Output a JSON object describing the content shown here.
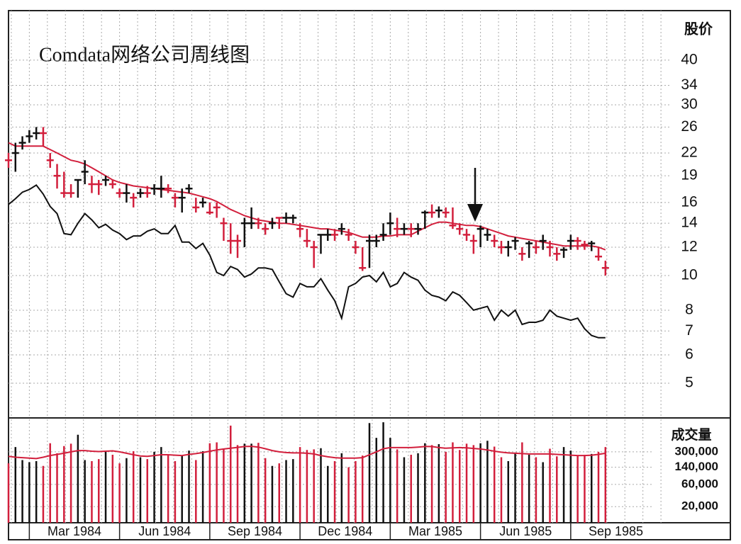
{
  "chart_data": {
    "type": "stock",
    "title": "Comdata网络公司周线图",
    "y_label": "股价",
    "volume_label": "成交量",
    "x": [
      0,
      1,
      2,
      3,
      4,
      5,
      6,
      7,
      8,
      9,
      10,
      11,
      12,
      13,
      14,
      15,
      16,
      17,
      18,
      19,
      20,
      21,
      22,
      23,
      24,
      25,
      26,
      27,
      28,
      29,
      30,
      31,
      32,
      33,
      34,
      35,
      36,
      37,
      38,
      39,
      40,
      41,
      42,
      43,
      44,
      45,
      46,
      47,
      48,
      49,
      50,
      51,
      52,
      53,
      54,
      55,
      56,
      57,
      58,
      59,
      60,
      61,
      62,
      63,
      64,
      65,
      66,
      67,
      68,
      69,
      70,
      71,
      72,
      73,
      74,
      75,
      76,
      77,
      78,
      79,
      80,
      81,
      82,
      83,
      84,
      85,
      86
    ],
    "xlim": [
      0,
      104
    ],
    "xticks": [
      {
        "value": 3,
        "label": "Mar 1984"
      },
      {
        "value": 16,
        "label": "Jun 1984"
      },
      {
        "value": 29,
        "label": "Sep 1984"
      },
      {
        "value": 42,
        "label": "Dec 1984"
      },
      {
        "value": 55,
        "label": "Mar 1985"
      },
      {
        "value": 68,
        "label": "Jun 1985"
      },
      {
        "value": 81,
        "label": "Sep 1985"
      }
    ],
    "ylim": [
      4,
      55
    ],
    "yticks": [
      40,
      34,
      30,
      26,
      22,
      19,
      16,
      14,
      12,
      10,
      8,
      7,
      6,
      5
    ],
    "log_scale": true,
    "grid": true,
    "high": [
      22,
      23.5,
      24.5,
      25.5,
      26,
      26,
      22,
      20.5,
      19.5,
      18,
      18.5,
      21,
      19,
      18.5,
      19,
      18.5,
      17.5,
      18,
      17,
      17.5,
      17.8,
      18,
      19,
      18,
      17,
      17.5,
      18,
      16.5,
      16.5,
      16,
      16,
      14.5,
      14,
      13,
      14.5,
      15.5,
      14.5,
      14,
      14.5,
      14.5,
      15,
      14.8,
      14,
      13.5,
      12.5,
      13,
      13.5,
      13.5,
      14,
      13.5,
      12.5,
      12,
      13,
      13,
      14,
      15,
      14.5,
      14,
      14,
      14,
      15.2,
      15.8,
      15.6,
      15.5,
      15.5,
      14,
      13.5,
      13,
      13.8,
      13.5,
      13,
      12.5,
      12.5,
      12.8,
      12,
      12.5,
      12.5,
      13,
      12.5,
      12,
      12,
      13,
      12.8,
      12.5,
      12.5,
      12,
      11
    ],
    "low": [
      20,
      19.5,
      22.5,
      23.5,
      24,
      23,
      20,
      17.5,
      16.5,
      16.5,
      16.5,
      18,
      17,
      16.8,
      17.8,
      17.5,
      16.5,
      16,
      15.5,
      16.5,
      16.5,
      16.8,
      16.5,
      17,
      15.5,
      15,
      17,
      15,
      15.5,
      14.8,
      14.5,
      12.5,
      11.5,
      11.2,
      12,
      13.5,
      13.5,
      13,
      13.5,
      13.5,
      14,
      14,
      12.8,
      12,
      10.5,
      11.5,
      12.5,
      12.5,
      13,
      12.5,
      11.5,
      10.3,
      10.5,
      12,
      12.5,
      13,
      12.8,
      13,
      12.8,
      13,
      13.5,
      14.5,
      14.5,
      14.5,
      13.5,
      13,
      12.5,
      11.5,
      12,
      12.5,
      12,
      11.5,
      11.3,
      11.8,
      11,
      11.2,
      11.5,
      11.8,
      11.3,
      11,
      11.2,
      11.8,
      11.8,
      11.8,
      11.7,
      11,
      10
    ],
    "close": [
      21,
      22,
      23.5,
      24.5,
      25,
      25,
      21,
      19,
      17,
      17,
      18.5,
      19.5,
      18,
      18,
      18.5,
      18,
      17,
      17,
      16.5,
      17,
      17,
      17.5,
      17.5,
      17.5,
      16.5,
      16.5,
      17.5,
      15.5,
      16,
      15,
      15.5,
      14,
      12.5,
      12.5,
      14,
      14,
      14,
      13.5,
      14,
      14.5,
      14.5,
      14.5,
      13.5,
      12.5,
      12,
      13,
      13,
      13,
      13.5,
      13,
      12,
      10.5,
      12.5,
      12.5,
      13,
      14,
      13.5,
      13.5,
      13.5,
      13.5,
      15,
      15,
      15.2,
      15,
      13.8,
      13.5,
      13,
      12.5,
      13.5,
      13,
      12.5,
      12,
      12,
      12.5,
      11.5,
      12.3,
      12,
      12.5,
      12,
      11.5,
      11.8,
      12.5,
      12.5,
      12.2,
      12.3,
      11.3,
      10.5
    ],
    "colors": [
      "#d21f3c",
      "#111111",
      "#111111",
      "#111111",
      "#111111",
      "#d21f3c",
      "#d21f3c",
      "#d21f3c",
      "#d21f3c",
      "#d21f3c",
      "#111111",
      "#111111",
      "#d21f3c",
      "#d21f3c",
      "#111111",
      "#d21f3c",
      "#d21f3c",
      "#111111",
      "#d21f3c",
      "#111111",
      "#d21f3c",
      "#111111",
      "#111111",
      "#d21f3c",
      "#d21f3c",
      "#111111",
      "#111111",
      "#d21f3c",
      "#111111",
      "#d21f3c",
      "#d21f3c",
      "#d21f3c",
      "#d21f3c",
      "#d21f3c",
      "#111111",
      "#111111",
      "#d21f3c",
      "#d21f3c",
      "#111111",
      "#d21f3c",
      "#111111",
      "#111111",
      "#d21f3c",
      "#d21f3c",
      "#d21f3c",
      "#111111",
      "#111111",
      "#d21f3c",
      "#111111",
      "#d21f3c",
      "#d21f3c",
      "#d21f3c",
      "#111111",
      "#111111",
      "#111111",
      "#111111",
      "#d21f3c",
      "#111111",
      "#d21f3c",
      "#111111",
      "#111111",
      "#d21f3c",
      "#111111",
      "#d21f3c",
      "#d21f3c",
      "#d21f3c",
      "#d21f3c",
      "#d21f3c",
      "#111111",
      "#111111",
      "#d21f3c",
      "#d21f3c",
      "#111111",
      "#111111",
      "#d21f3c",
      "#111111",
      "#d21f3c",
      "#111111",
      "#d21f3c",
      "#d21f3c",
      "#111111",
      "#111111",
      "#d21f3c",
      "#d21f3c",
      "#111111",
      "#d21f3c",
      "#d21f3c"
    ],
    "moving_average": {
      "color": "#d21f3c",
      "values": [
        23.5,
        23,
        23,
        23,
        23,
        23,
        22.5,
        22,
        21.5,
        21,
        20.8,
        20.5,
        20,
        19.5,
        19,
        18.5,
        18.2,
        18,
        17.8,
        17.7,
        17.6,
        17.5,
        17.4,
        17.3,
        17.2,
        17.1,
        17,
        16.8,
        16.6,
        16.4,
        16.1,
        15.7,
        15.3,
        15,
        14.7,
        14.5,
        14.3,
        14.2,
        14.1,
        14,
        14,
        13.9,
        13.8,
        13.7,
        13.6,
        13.5,
        13.5,
        13.4,
        13.3,
        13.2,
        13,
        12.8,
        12.8,
        12.8,
        12.9,
        12.9,
        13,
        13,
        13,
        13.3,
        13.6,
        13.9,
        14.1,
        14.1,
        14,
        13.9,
        13.8,
        13.8,
        13.7,
        13.5,
        13.3,
        13.1,
        12.9,
        12.8,
        12.7,
        12.6,
        12.5,
        12.4,
        12.3,
        12.2,
        12.1,
        12.1,
        12.1,
        12.1,
        12.1,
        12,
        11.8
      ]
    },
    "relative_strength": {
      "color": "#111111",
      "values": [
        15.8,
        16.4,
        17.1,
        17.4,
        17.9,
        16.9,
        15.6,
        14.9,
        13.1,
        13,
        14,
        14.9,
        14.3,
        13.6,
        13.9,
        13.4,
        13.1,
        12.6,
        12.9,
        12.9,
        13.3,
        13.5,
        13.1,
        13.1,
        13.8,
        12.4,
        12.4,
        11.9,
        12.3,
        11.4,
        10.2,
        10,
        10.6,
        10.4,
        9.9,
        10.1,
        10.5,
        10.5,
        10.4,
        9.6,
        8.9,
        8.7,
        9.5,
        9.3,
        9.3,
        9.8,
        9.1,
        8.5,
        7.6,
        9.3,
        9.5,
        9.9,
        10,
        9.6,
        10.2,
        9.3,
        9.5,
        10.2,
        9.9,
        9.7,
        9.1,
        8.8,
        8.7,
        8.5,
        9,
        8.8,
        8.4,
        8,
        8.1,
        8.2,
        7.5,
        8,
        7.7,
        8,
        7.3,
        7.4,
        7.4,
        7.5,
        8,
        7.7,
        7.6,
        7.5,
        7.6,
        7.1,
        6.8,
        6.7,
        6.7
      ]
    },
    "volume": {
      "ylim": [
        9000,
        1500000
      ],
      "yticks": [
        {
          "value": 300000,
          "label": "300,000"
        },
        {
          "value": 140000,
          "label": "140,000"
        },
        {
          "value": 60000,
          "label": "60,000"
        },
        {
          "value": 20000,
          "label": "20,000"
        }
      ],
      "values": [
        170000,
        380000,
        200000,
        180000,
        190000,
        150000,
        460000,
        280000,
        400000,
        450000,
        700000,
        200000,
        190000,
        210000,
        300000,
        260000,
        170000,
        220000,
        310000,
        230000,
        210000,
        300000,
        380000,
        260000,
        190000,
        250000,
        320000,
        200000,
        310000,
        460000,
        480000,
        350000,
        1100000,
        420000,
        450000,
        450000,
        470000,
        220000,
        150000,
        170000,
        200000,
        210000,
        380000,
        330000,
        340000,
        360000,
        150000,
        190000,
        280000,
        140000,
        190000,
        250000,
        1250000,
        600000,
        1300000,
        600000,
        340000,
        230000,
        260000,
        280000,
        460000,
        420000,
        440000,
        300000,
        480000,
        330000,
        450000,
        420000,
        460000,
        520000,
        390000,
        230000,
        190000,
        290000,
        480000,
        260000,
        230000,
        180000,
        350000,
        240000,
        380000,
        320000,
        250000,
        260000,
        270000,
        300000,
        380000
      ]
    },
    "volume_ma": {
      "color": "#d21f3c",
      "values": [
        240000,
        230000,
        225000,
        220000,
        215000,
        230000,
        250000,
        265000,
        280000,
        300000,
        320000,
        320000,
        310000,
        305000,
        310000,
        315000,
        300000,
        280000,
        260000,
        245000,
        240000,
        250000,
        260000,
        260000,
        255000,
        250000,
        265000,
        275000,
        290000,
        310000,
        330000,
        345000,
        360000,
        375000,
        390000,
        395000,
        380000,
        350000,
        320000,
        300000,
        290000,
        285000,
        285000,
        280000,
        270000,
        250000,
        235000,
        225000,
        220000,
        220000,
        220000,
        225000,
        260000,
        300000,
        350000,
        370000,
        370000,
        370000,
        370000,
        380000,
        390000,
        390000,
        370000,
        360000,
        365000,
        370000,
        365000,
        355000,
        345000,
        330000,
        310000,
        295000,
        285000,
        280000,
        275000,
        270000,
        270000,
        270000,
        270000,
        265000,
        260000,
        255000,
        250000,
        250000,
        255000,
        265000,
        280000
      ]
    }
  }
}
